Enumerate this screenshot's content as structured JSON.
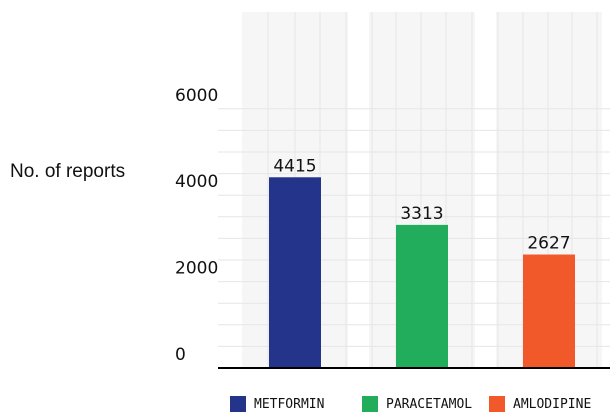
{
  "chart_data": {
    "type": "bar",
    "categories": [
      "METFORMIN",
      "PARACETAMOL",
      "AMLODIPINE"
    ],
    "values": [
      4415,
      3313,
      2627
    ],
    "colors": [
      "#23348a",
      "#22ad5c",
      "#f2592a"
    ],
    "ylabel": "No. of reports",
    "ylim": [
      0,
      6000
    ],
    "yticks": [
      {
        "value": 0,
        "label": "0"
      },
      {
        "value": 2000,
        "label": "2000"
      },
      {
        "value": 4000,
        "label": "4000"
      },
      {
        "value": 6000,
        "label": "6000"
      }
    ],
    "data_labels": [
      "4415",
      "3313",
      "2627"
    ],
    "grid": true,
    "legend_position": "bottom"
  }
}
